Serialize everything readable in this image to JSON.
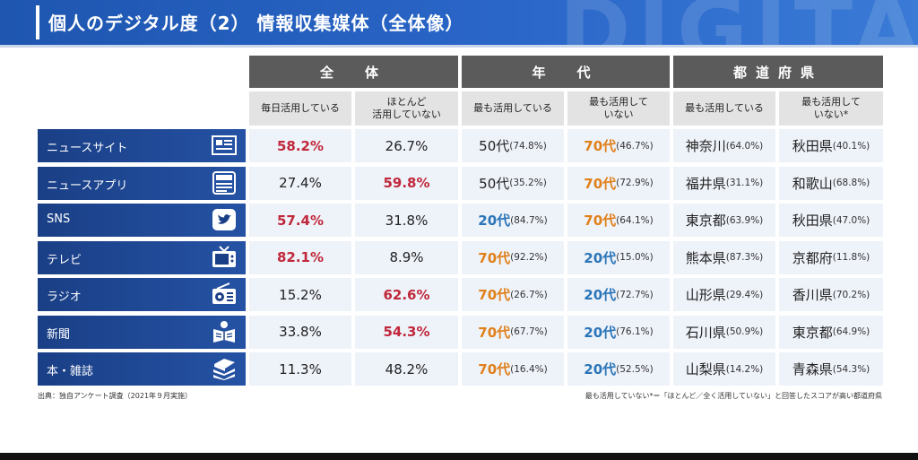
{
  "header": {
    "title": "個人のデジタル度（2） 情報収集媒体（全体像）",
    "watermark": "DIGITA"
  },
  "groups": [
    {
      "label": "全　体"
    },
    {
      "label": "年　代"
    },
    {
      "label": "都道府県"
    }
  ],
  "subheaders": [
    "毎日活用している",
    "ほとんど\n活用していない",
    "最も活用している",
    "最も活用して\nいない",
    "最も活用している",
    "最も活用して\nいない*"
  ],
  "rows": [
    {
      "label": "ニュースサイト",
      "icon": "news-site-icon",
      "all_daily": "58.2%",
      "all_rarely": "26.7%",
      "age_most": "50代",
      "age_most_pct": "(74.8%)",
      "age_least": "70代",
      "age_least_pct": "(46.7%)",
      "pref_most": "神奈川",
      "pref_most_pct": "(64.0%)",
      "pref_least": "秋田県",
      "pref_least_pct": "(40.1%)"
    },
    {
      "label": "ニュースアプリ",
      "icon": "news-app-icon",
      "all_daily": "27.4%",
      "all_rarely": "59.8%",
      "age_most": "50代",
      "age_most_pct": "(35.2%)",
      "age_least": "70代",
      "age_least_pct": "(72.9%)",
      "pref_most": "福井県",
      "pref_most_pct": "(31.1%)",
      "pref_least": "和歌山",
      "pref_least_pct": "(68.8%)"
    },
    {
      "label": "SNS",
      "icon": "twitter-bird-icon",
      "all_daily": "57.4%",
      "all_rarely": "31.8%",
      "age_most": "20代",
      "age_most_pct": "(84.7%)",
      "age_least": "70代",
      "age_least_pct": "(64.1%)",
      "pref_most": "東京都",
      "pref_most_pct": "(63.9%)",
      "pref_least": "秋田県",
      "pref_least_pct": "(47.0%)"
    },
    {
      "label": "テレビ",
      "icon": "tv-icon",
      "all_daily": "82.1%",
      "all_rarely": "8.9%",
      "age_most": "70代",
      "age_most_pct": "(92.2%)",
      "age_least": "20代",
      "age_least_pct": "(15.0%)",
      "pref_most": "熊本県",
      "pref_most_pct": "(87.3%)",
      "pref_least": "京都府",
      "pref_least_pct": "(11.8%)"
    },
    {
      "label": "ラジオ",
      "icon": "radio-icon",
      "all_daily": "15.2%",
      "all_rarely": "62.6%",
      "age_most": "70代",
      "age_most_pct": "(26.7%)",
      "age_least": "20代",
      "age_least_pct": "(72.7%)",
      "pref_most": "山形県",
      "pref_most_pct": "(29.4%)",
      "pref_least": "香川県",
      "pref_least_pct": "(70.2%)"
    },
    {
      "label": "新聞",
      "icon": "newspaper-reader-icon",
      "all_daily": "33.8%",
      "all_rarely": "54.3%",
      "age_most": "70代",
      "age_most_pct": "(67.7%)",
      "age_least": "20代",
      "age_least_pct": "(76.1%)",
      "pref_most": "石川県",
      "pref_most_pct": "(50.9%)",
      "pref_least": "東京都",
      "pref_least_pct": "(64.9%)"
    },
    {
      "label": "本・雑誌",
      "icon": "books-icon",
      "all_daily": "11.3%",
      "all_rarely": "48.2%",
      "age_most": "70代",
      "age_most_pct": "(16.4%)",
      "age_least": "20代",
      "age_least_pct": "(52.5%)",
      "pref_most": "山梨県",
      "pref_most_pct": "(14.2%)",
      "pref_least": "青森県",
      "pref_least_pct": "(54.3%)"
    }
  ],
  "highlights": {
    "all_daily": [
      "red",
      "",
      "red",
      "red",
      "",
      "",
      ""
    ],
    "all_rarely": [
      "",
      "red",
      "",
      "",
      "red",
      "red",
      ""
    ],
    "colors": {
      "red": "#c0283b",
      "blue": "#2a75b8",
      "orange": "#e0801a",
      "header_blue": "#1e56b0",
      "row_blue": "#1a3f86"
    }
  },
  "notes": {
    "source": "出典：独自アンケート調査（2021年９月実施）",
    "footnote": "最も活用していない*＝「ほとんど／全く活用していない」と回答したスコアが高い都道府県"
  }
}
